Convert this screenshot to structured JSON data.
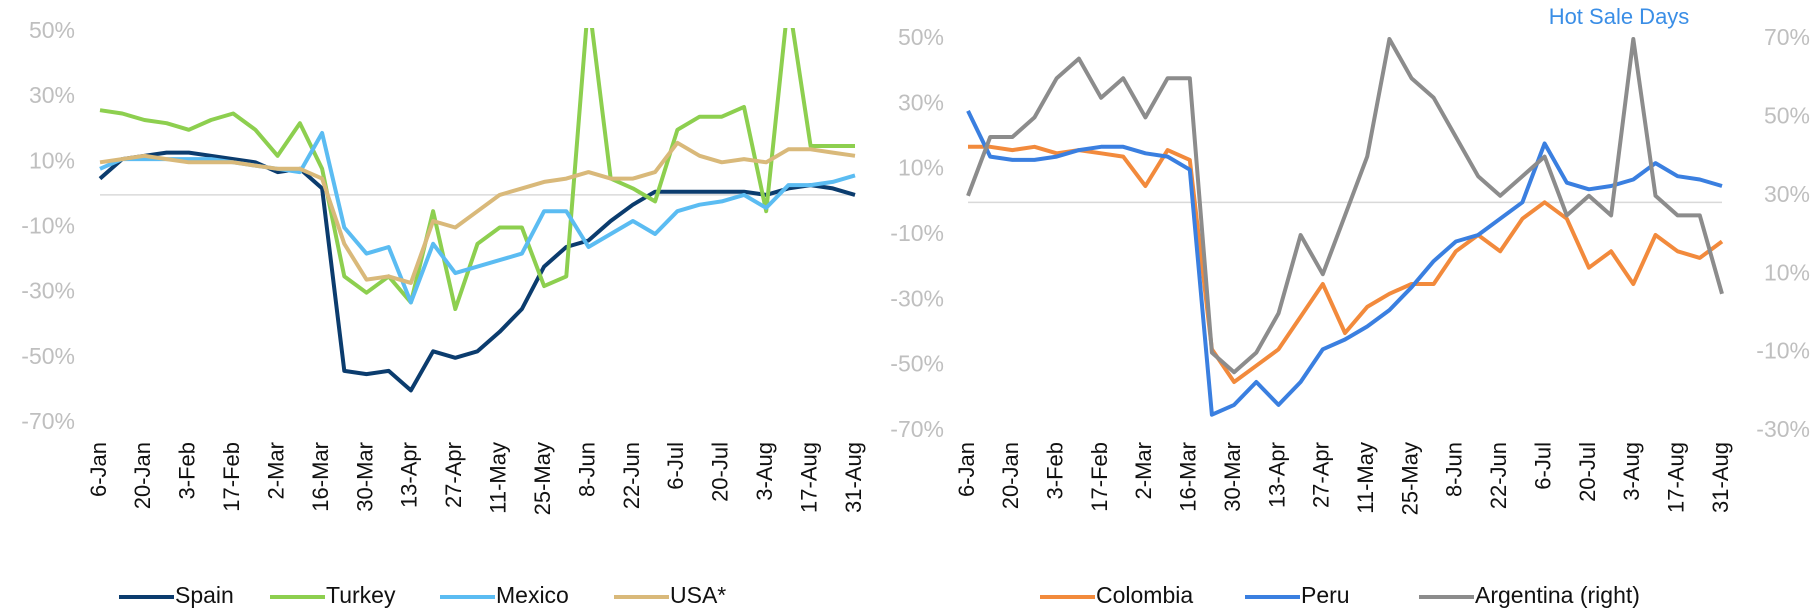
{
  "chart_data": [
    {
      "type": "line",
      "categories": [
        "6-Jan",
        null,
        "20-Jan",
        null,
        "3-Feb",
        null,
        "17-Feb",
        null,
        "2-Mar",
        null,
        "16-Mar",
        null,
        "30-Mar",
        null,
        "13-Apr",
        null,
        "27-Apr",
        null,
        "11-May",
        null,
        "25-May",
        null,
        "8-Jun",
        null,
        "22-Jun",
        null,
        "6-Jul",
        null,
        "20-Jul",
        null,
        "3-Aug",
        null,
        "17-Aug",
        null,
        "31-Aug"
      ],
      "series": [
        {
          "name": "Spain",
          "color": "#0b3c6e",
          "values": [
            5,
            11,
            12,
            13,
            13,
            12,
            11,
            10,
            7,
            8,
            2,
            -54,
            -55,
            -54,
            -60,
            -48,
            -50,
            -48,
            -42,
            -35,
            -22,
            -16,
            -14,
            -8,
            -3,
            1,
            1,
            1,
            1,
            1,
            0,
            2,
            3,
            2,
            0
          ]
        },
        {
          "name": "Turkey",
          "color": "#8dcf4f",
          "values": [
            26,
            25,
            23,
            22,
            20,
            23,
            25,
            20,
            12,
            22,
            8,
            -25,
            -30,
            -25,
            -33,
            -5,
            -35,
            -15,
            -10,
            -10,
            -28,
            -25,
            60,
            5,
            2,
            -2,
            20,
            24,
            24,
            27,
            -5,
            60,
            15,
            15,
            15
          ]
        },
        {
          "name": "Mexico",
          "color": "#5bbcf2",
          "values": [
            8,
            11,
            11,
            11,
            11,
            11,
            10,
            9,
            8,
            7,
            19,
            -10,
            -18,
            -16,
            -33,
            -15,
            -24,
            -22,
            -20,
            -18,
            -5,
            -5,
            -16,
            -12,
            -8,
            -12,
            -5,
            -3,
            -2,
            0,
            -4,
            3,
            3,
            4,
            6
          ]
        },
        {
          "name": "USA*",
          "color": "#d9b97a",
          "values": [
            10,
            11,
            12,
            11,
            10,
            10,
            10,
            9,
            8,
            8,
            5,
            -15,
            -26,
            -25,
            -27,
            -8,
            -10,
            -5,
            0,
            2,
            4,
            5,
            7,
            5,
            5,
            7,
            16,
            12,
            10,
            11,
            10,
            14,
            14,
            13,
            12
          ]
        }
      ],
      "ylim": [
        -70,
        50
      ],
      "yticks": [
        {
          "value": -70,
          "label": "-70%"
        },
        {
          "value": -50,
          "label": "-50%"
        },
        {
          "value": -30,
          "label": "-30%"
        },
        {
          "value": -10,
          "label": "-10%"
        },
        {
          "value": 10,
          "label": "10%"
        },
        {
          "value": 30,
          "label": "30%"
        },
        {
          "value": 50,
          "label": "50%"
        }
      ],
      "legend": "bottom"
    },
    {
      "type": "line",
      "annotation": "Hot Sale Days",
      "categories": [
        "6-Jan",
        null,
        "20-Jan",
        null,
        "3-Feb",
        null,
        "17-Feb",
        null,
        "2-Mar",
        null,
        "16-Mar",
        null,
        "30-Mar",
        null,
        "13-Apr",
        null,
        "27-Apr",
        null,
        "11-May",
        null,
        "25-May",
        null,
        "8-Jun",
        null,
        "22-Jun",
        null,
        "6-Jul",
        null,
        "20-Jul",
        null,
        "3-Aug",
        null,
        "17-Aug",
        null,
        "31-Aug"
      ],
      "series": [
        {
          "name": "Colombia",
          "color": "#f28a3c",
          "values": [
            17,
            17,
            16,
            17,
            15,
            16,
            15,
            14,
            5,
            16,
            13,
            -45,
            -55,
            -50,
            -45,
            -35,
            -25,
            -40,
            -32,
            -28,
            -25,
            -25,
            -15,
            -10,
            -15,
            -5,
            0,
            -5,
            -20,
            -15,
            -25,
            -10,
            -15,
            -17,
            -12
          ]
        },
        {
          "name": "Peru",
          "color": "#3a7fe0",
          "values": [
            28,
            14,
            13,
            13,
            14,
            16,
            17,
            17,
            15,
            14,
            10,
            -65,
            -62,
            -55,
            -62,
            -55,
            -45,
            -42,
            -38,
            -33,
            -26,
            -18,
            -12,
            -10,
            -5,
            0,
            18,
            6,
            4,
            5,
            7,
            12,
            8,
            7,
            5
          ]
        },
        {
          "name": "Argentina (right)",
          "color": "#8c8c8c",
          "axis": "y2",
          "values": [
            30,
            45,
            45,
            50,
            60,
            65,
            55,
            60,
            50,
            60,
            60,
            -10,
            -15,
            -10,
            0,
            20,
            10,
            25,
            40,
            70,
            60,
            55,
            45,
            35,
            30,
            35,
            40,
            25,
            30,
            25,
            70,
            30,
            25,
            25,
            5
          ]
        }
      ],
      "ylim": [
        -70,
        50
      ],
      "yticks": [
        {
          "value": -70,
          "label": "-70%"
        },
        {
          "value": -50,
          "label": "-50%"
        },
        {
          "value": -30,
          "label": "-30%"
        },
        {
          "value": -10,
          "label": "-10%"
        },
        {
          "value": 10,
          "label": "10%"
        },
        {
          "value": 30,
          "label": "30%"
        },
        {
          "value": 50,
          "label": "50%"
        }
      ],
      "y2lim": [
        -30,
        70
      ],
      "y2ticks": [
        {
          "value": -30,
          "label": "-30%"
        },
        {
          "value": -10,
          "label": "-10%"
        },
        {
          "value": 10,
          "label": "10%"
        },
        {
          "value": 30,
          "label": "30%"
        },
        {
          "value": 50,
          "label": "50%"
        },
        {
          "value": 70,
          "label": "70%"
        }
      ],
      "legend": "bottom"
    }
  ]
}
